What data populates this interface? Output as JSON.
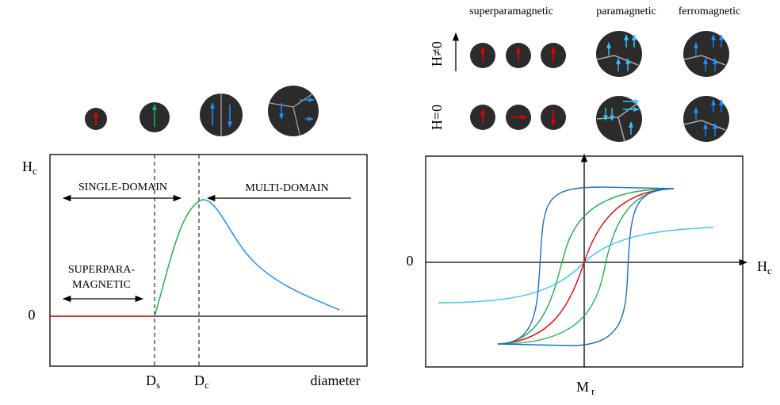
{
  "left_plot": {
    "y_label": {
      "main": "H",
      "sub": "c"
    },
    "zero": "0",
    "single_domain": "SINGLE-DOMAIN",
    "multi_domain": "MULTI-DOMAIN",
    "superpara_line1": "SUPERPARA-",
    "superpara_line2": "MAGNETIC",
    "ds": {
      "main": "D",
      "sub": "s"
    },
    "dc": {
      "main": "D",
      "sub": "c"
    },
    "x_label": "diameter"
  },
  "right_plot": {
    "col_superparamagnetic": "superparamagnetic",
    "col_paramagnetic": "paramagnetic",
    "col_ferromagnetic": "ferromagnetic",
    "row_h_nonzero": "H≠0",
    "row_h_zero": "H=0",
    "zero": "0",
    "x_label": {
      "main": "H",
      "sub": "c"
    },
    "y_label": {
      "main": "M",
      "sub": "r"
    }
  }
}
